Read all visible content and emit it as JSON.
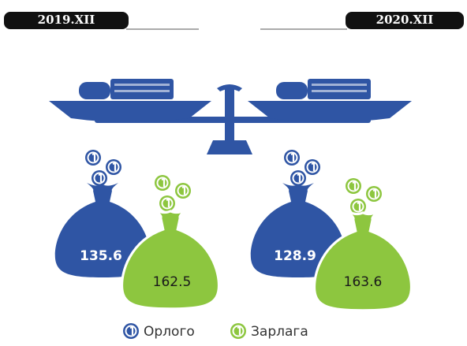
{
  "periods": [
    {
      "label": "2019.XII",
      "income": 135.6,
      "expense": 162.5
    },
    {
      "label": "2020.XII",
      "income": 128.9,
      "expense": 163.6
    }
  ],
  "legend": {
    "income": "Орлого",
    "expense": "Зарлага"
  }
}
